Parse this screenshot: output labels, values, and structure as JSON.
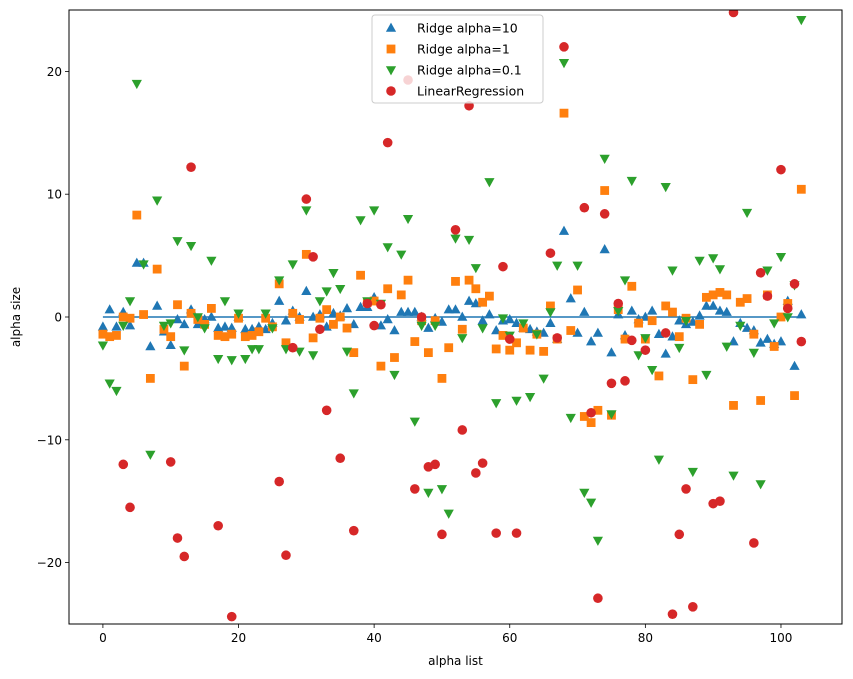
{
  "chart_data": {
    "type": "scatter",
    "title": "",
    "xlabel": "alpha list",
    "ylabel": "alpha size",
    "xlim": [
      -5,
      109
    ],
    "ylim": [
      -25,
      25
    ],
    "xticks": [
      0,
      20,
      40,
      60,
      80,
      100
    ],
    "yticks": [
      -20,
      -10,
      0,
      10,
      20
    ],
    "xtick_labels": [
      "0",
      "20",
      "40",
      "60",
      "80",
      "100"
    ],
    "ytick_labels": [
      "−20",
      "−10",
      "0",
      "10",
      "20"
    ],
    "grid": false,
    "legend_position": "top-center",
    "hline": {
      "y": 0,
      "xmin": 0,
      "xmax": 103,
      "color": "#1f77b4"
    },
    "series": [
      {
        "name": "Ridge alpha=10",
        "marker": "triangle-up",
        "color": "#1f77b4",
        "x": [
          0,
          1,
          2,
          3,
          4,
          5,
          6,
          7,
          8,
          9,
          10,
          11,
          12,
          13,
          14,
          15,
          16,
          17,
          18,
          19,
          20,
          21,
          22,
          23,
          24,
          25,
          26,
          27,
          28,
          29,
          30,
          31,
          32,
          33,
          34,
          35,
          36,
          37,
          38,
          39,
          40,
          41,
          42,
          43,
          44,
          45,
          46,
          47,
          48,
          49,
          50,
          51,
          52,
          53,
          54,
          55,
          56,
          57,
          58,
          59,
          60,
          61,
          62,
          63,
          64,
          65,
          66,
          67,
          68,
          69,
          70,
          71,
          72,
          73,
          74,
          75,
          76,
          77,
          78,
          79,
          80,
          81,
          82,
          83,
          84,
          85,
          86,
          87,
          88,
          89,
          90,
          91,
          92,
          93,
          94,
          95,
          96,
          97,
          98,
          99,
          100,
          101,
          102,
          103
        ],
        "values": [
          -0.8,
          0.6,
          -0.8,
          0.4,
          -0.7,
          4.4,
          4.4,
          -2.4,
          0.9,
          -1.2,
          -2.3,
          -0.2,
          -0.6,
          0.6,
          -0.6,
          -0.2,
          0.0,
          -0.9,
          -0.8,
          -0.9,
          0.0,
          -1.0,
          -1.0,
          -0.8,
          -1.0,
          -0.5,
          1.3,
          -0.3,
          0.5,
          0.0,
          2.1,
          0.0,
          0.2,
          -0.8,
          0.3,
          0.1,
          0.7,
          -0.6,
          0.8,
          0.8,
          1.6,
          -0.7,
          -0.2,
          -1.1,
          0.4,
          0.4,
          0.4,
          0.0,
          -0.9,
          -0.1,
          -0.4,
          0.6,
          0.6,
          0.0,
          1.3,
          1.1,
          -0.3,
          0.2,
          -1.1,
          -0.3,
          -0.2,
          -0.5,
          -0.9,
          -1.0,
          -1.2,
          -1.3,
          -0.5,
          -1.8,
          7.0,
          1.5,
          -1.3,
          0.4,
          -2.0,
          -1.3,
          5.5,
          -2.9,
          0.2,
          -1.5,
          0.5,
          -0.2,
          0.0,
          0.5,
          -1.4,
          -3.0,
          -1.6,
          -0.3,
          -0.6,
          -0.4,
          0.1,
          0.9,
          0.9,
          0.5,
          0.4,
          -2.0,
          -0.5,
          -0.9,
          -1.1,
          -2.1,
          -1.8,
          -2.2,
          -2.0,
          1.3,
          -4.0,
          0.2
        ]
      },
      {
        "name": "Ridge alpha=1",
        "marker": "square",
        "color": "#ff7f0e",
        "x": [
          0,
          1,
          2,
          3,
          4,
          5,
          6,
          7,
          8,
          9,
          10,
          11,
          12,
          13,
          14,
          15,
          16,
          17,
          18,
          19,
          20,
          21,
          22,
          23,
          24,
          25,
          26,
          27,
          28,
          29,
          30,
          31,
          32,
          33,
          34,
          35,
          36,
          37,
          38,
          39,
          40,
          41,
          42,
          43,
          44,
          45,
          46,
          47,
          48,
          49,
          50,
          51,
          52,
          53,
          54,
          55,
          56,
          57,
          58,
          59,
          60,
          61,
          62,
          63,
          64,
          65,
          66,
          67,
          68,
          69,
          70,
          71,
          72,
          73,
          74,
          75,
          76,
          77,
          78,
          79,
          80,
          81,
          82,
          83,
          84,
          85,
          86,
          87,
          88,
          89,
          90,
          91,
          92,
          93,
          94,
          95,
          96,
          97,
          98,
          99,
          100,
          101,
          102,
          103
        ],
        "values": [
          -1.4,
          -1.6,
          -1.5,
          0.0,
          -0.1,
          8.3,
          0.2,
          -5.0,
          3.9,
          -1.0,
          -1.6,
          1.0,
          -4.0,
          0.3,
          -0.2,
          -0.6,
          0.7,
          -1.5,
          -1.6,
          -1.4,
          -0.1,
          -1.6,
          -1.5,
          -1.2,
          -0.1,
          -0.8,
          2.7,
          -2.1,
          0.3,
          -0.2,
          5.1,
          -1.7,
          -0.1,
          0.6,
          -0.6,
          0.0,
          -0.9,
          -2.9,
          3.4,
          1.2,
          1.3,
          -4.0,
          2.3,
          -3.3,
          1.8,
          3.0,
          -2.0,
          -0.3,
          -2.9,
          -0.3,
          -5.0,
          -2.5,
          2.9,
          -1.0,
          3.0,
          2.3,
          1.2,
          1.7,
          -2.6,
          -1.5,
          -2.7,
          -2.1,
          -0.9,
          -2.7,
          -1.4,
          -2.8,
          0.9,
          -1.8,
          16.6,
          -1.1,
          2.2,
          -8.1,
          -8.6,
          -7.6,
          10.3,
          -8.0,
          0.6,
          -1.8,
          2.5,
          -0.5,
          -1.8,
          -0.3,
          -4.8,
          0.9,
          0.4,
          -1.6,
          -0.1,
          -5.1,
          -0.6,
          1.6,
          1.8,
          2.0,
          1.8,
          -7.2,
          1.2,
          1.5,
          -1.4,
          -6.8,
          1.8,
          -2.4,
          0.0,
          1.1,
          -6.4,
          10.4
        ]
      },
      {
        "name": "Ridge alpha=0.1",
        "marker": "triangle-down",
        "color": "#2ca02c",
        "x": [
          0,
          1,
          2,
          3,
          4,
          5,
          6,
          7,
          8,
          9,
          10,
          11,
          12,
          13,
          14,
          15,
          16,
          17,
          18,
          19,
          20,
          21,
          22,
          23,
          24,
          25,
          26,
          27,
          28,
          29,
          30,
          31,
          32,
          33,
          34,
          35,
          36,
          37,
          38,
          39,
          40,
          41,
          42,
          43,
          44,
          45,
          46,
          47,
          48,
          49,
          50,
          51,
          52,
          53,
          54,
          55,
          56,
          57,
          58,
          59,
          60,
          61,
          62,
          63,
          64,
          65,
          66,
          67,
          68,
          69,
          70,
          71,
          72,
          73,
          74,
          75,
          76,
          77,
          78,
          79,
          80,
          81,
          82,
          83,
          84,
          85,
          86,
          87,
          88,
          89,
          90,
          91,
          92,
          93,
          94,
          95,
          96,
          97,
          98,
          99,
          100,
          101,
          102,
          103
        ],
        "values": [
          -2.3,
          -5.4,
          -6.0,
          -0.7,
          1.3,
          19.0,
          4.3,
          -11.2,
          9.5,
          -0.7,
          -0.5,
          6.2,
          -2.7,
          5.8,
          0.0,
          -0.9,
          4.6,
          -3.4,
          1.3,
          -3.5,
          0.3,
          -3.4,
          -2.6,
          -2.6,
          0.3,
          -0.9,
          3.0,
          -2.6,
          4.3,
          -2.8,
          8.7,
          -3.1,
          1.3,
          2.1,
          3.6,
          2.3,
          -2.8,
          -6.2,
          7.9,
          1.3,
          8.7,
          1.1,
          5.7,
          -4.7,
          5.1,
          8.0,
          -8.5,
          -0.7,
          -14.3,
          -0.7,
          -14.0,
          -16.0,
          6.4,
          -1.7,
          6.3,
          4.0,
          -0.9,
          11.0,
          -7.0,
          -0.1,
          -1.5,
          -6.8,
          -0.5,
          -6.5,
          -1.4,
          -5.0,
          0.4,
          4.2,
          20.7,
          -8.2,
          4.2,
          -14.3,
          -15.1,
          -18.2,
          12.9,
          -7.9,
          0.5,
          3.0,
          11.1,
          -3.1,
          -1.7,
          -4.3,
          -11.6,
          10.6,
          3.8,
          -2.5,
          -0.3,
          -12.6,
          4.6,
          -4.7,
          4.8,
          3.9,
          -2.4,
          -12.9,
          -0.7,
          8.5,
          -2.9,
          -13.6,
          3.8,
          -0.5,
          4.9,
          0.0,
          2.6,
          24.2
        ]
      },
      {
        "name": "LinearRegression",
        "marker": "circle",
        "color": "#d62728",
        "x": [
          3,
          4,
          10,
          11,
          12,
          13,
          17,
          19,
          26,
          27,
          28,
          30,
          31,
          32,
          33,
          35,
          37,
          39,
          40,
          41,
          42,
          45,
          46,
          47,
          48,
          49,
          50,
          52,
          53,
          54,
          55,
          56,
          58,
          59,
          60,
          61,
          66,
          67,
          68,
          71,
          72,
          73,
          74,
          75,
          76,
          77,
          78,
          80,
          83,
          84,
          85,
          86,
          87,
          90,
          91,
          93,
          96,
          97,
          98,
          100,
          101,
          102,
          103
        ],
        "values": [
          -12.0,
          -15.5,
          -11.8,
          -18.0,
          -19.5,
          12.2,
          -17.0,
          -24.4,
          -13.4,
          -19.4,
          -2.5,
          9.6,
          4.9,
          -1.0,
          -7.6,
          -11.5,
          -17.4,
          1.1,
          -0.7,
          1.0,
          14.2,
          19.3,
          -14.0,
          0.0,
          -12.2,
          -12.0,
          -17.7,
          7.1,
          -9.2,
          17.2,
          -12.7,
          -11.9,
          -17.6,
          4.1,
          -1.8,
          -17.6,
          5.2,
          -1.7,
          22.0,
          8.9,
          -7.8,
          -22.9,
          8.4,
          -5.4,
          1.1,
          -5.2,
          -1.9,
          -2.7,
          -1.3,
          -24.2,
          -17.7,
          -14.0,
          -23.6,
          -15.2,
          -15.0,
          24.8,
          -18.4,
          3.6,
          1.7,
          12.0,
          0.7,
          2.7,
          -2.0
        ]
      }
    ]
  }
}
